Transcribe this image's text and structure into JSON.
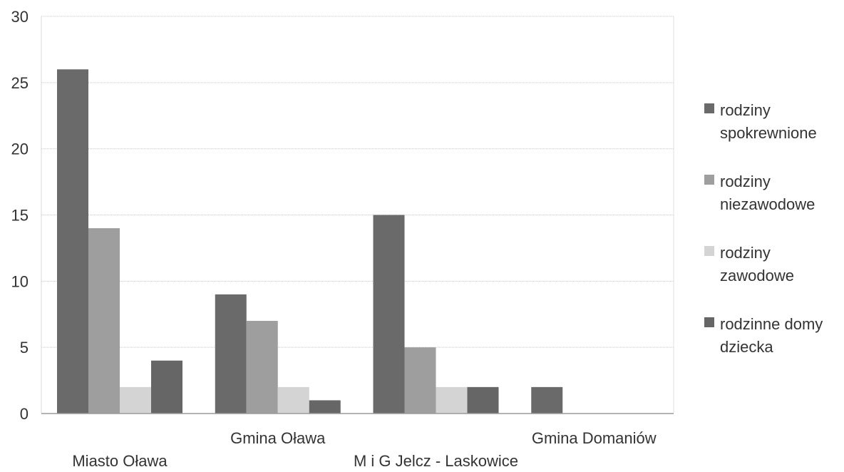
{
  "chart_data": {
    "type": "bar",
    "title": "",
    "xlabel": "",
    "ylabel": "",
    "ylim": [
      0,
      30
    ],
    "yticks": [
      0,
      5,
      10,
      15,
      20,
      25,
      30
    ],
    "grid": true,
    "legend_position": "right",
    "categories": [
      "Miasto Oława",
      "Gmina Oława",
      "M i G Jelcz - Laskowice",
      "Gmina Domaniów"
    ],
    "category_label_rows": [
      "bottom",
      "top",
      "bottom",
      "top"
    ],
    "series": [
      {
        "name": "rodziny spokrewnione",
        "legend_lines": [
          "rodziny",
          "spokrewnione"
        ],
        "color": "#6a6a6a",
        "values": [
          26,
          9,
          15,
          2
        ]
      },
      {
        "name": "rodziny niezawodowe",
        "legend_lines": [
          "rodziny",
          "niezawodowe"
        ],
        "color": "#9e9e9e",
        "values": [
          14,
          7,
          5,
          0
        ]
      },
      {
        "name": "rodziny zawodowe",
        "legend_lines": [
          "rodziny",
          "zawodowe"
        ],
        "color": "#d4d4d4",
        "values": [
          2,
          2,
          2,
          0
        ]
      },
      {
        "name": "rodzinne domy dziecka",
        "legend_lines": [
          "rodzinne domy",
          "dziecka"
        ],
        "color": "#666666",
        "values": [
          4,
          1,
          2,
          0
        ]
      }
    ]
  }
}
